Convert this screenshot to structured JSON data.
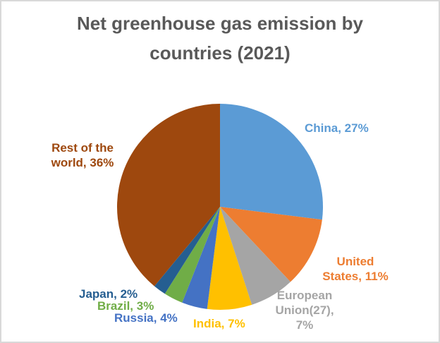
{
  "chart_data": {
    "type": "pie",
    "title": "Net greenhouse gas emission by countries (2021)",
    "unit": "%",
    "legend": "none",
    "label_position": "outside-end",
    "label_format": "category, percent",
    "start_angle_deg": 0,
    "direction": "clockwise",
    "title_color": "#595959",
    "slices": [
      {
        "label": "China",
        "value": 27,
        "display": "China, 27%",
        "color": "#5B9BD5"
      },
      {
        "label": "United States",
        "value": 11,
        "display": "United States, 11%",
        "color": "#ED7D31"
      },
      {
        "label": "European Union(27)",
        "value": 7,
        "display": "European Union(27), 7%",
        "color": "#A5A5A5"
      },
      {
        "label": "India",
        "value": 7,
        "display": "India, 7%",
        "color": "#FFC000"
      },
      {
        "label": "Russia",
        "value": 4,
        "display": "Russia, 4%",
        "color": "#4472C4"
      },
      {
        "label": "Brazil",
        "value": 3,
        "display": "Brazil, 3%",
        "color": "#70AD47"
      },
      {
        "label": "Japan",
        "value": 2,
        "display": "Japan, 2%",
        "color": "#255E91"
      },
      {
        "label": "Rest of the world",
        "value": 36,
        "display": "Rest of the world, 36%",
        "color": "#9E480E"
      }
    ]
  }
}
